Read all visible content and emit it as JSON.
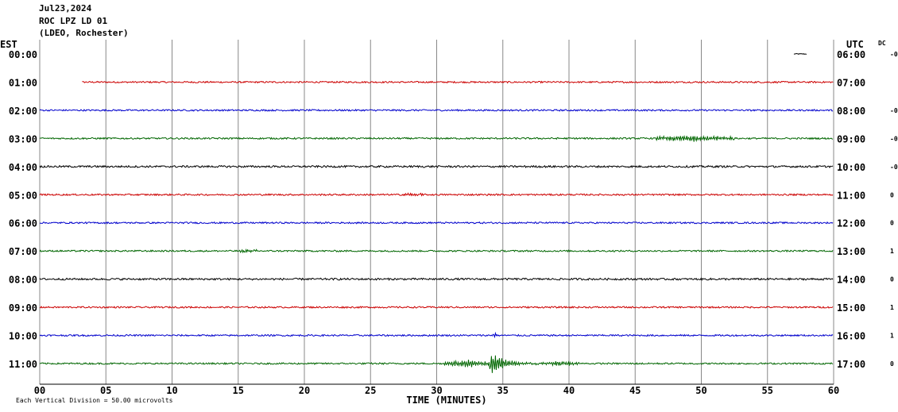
{
  "header": {
    "date": "Jul23,2024",
    "station": "ROC LPZ LD 01",
    "network": "(LDEO, Rochester)"
  },
  "axis_labels": {
    "left": "EST",
    "right": "UTC",
    "dc": "DC",
    "x_title": "TIME (MINUTES)",
    "footer": "Each Vertical Division =   50.00 microvolts"
  },
  "colors": {
    "red": "#cc0000",
    "blue": "#0000cc",
    "green": "#006600",
    "black": "#000000",
    "grid": "#888888"
  },
  "chart_data": {
    "type": "line",
    "title": "ROC LPZ LD 01",
    "xlabel": "TIME (MINUTES)",
    "xlim": [
      0,
      60
    ],
    "x_ticks": [
      "00",
      "05",
      "10",
      "15",
      "20",
      "25",
      "30",
      "35",
      "40",
      "45",
      "50",
      "55",
      "60"
    ],
    "grid": "vertical every 5 minutes",
    "rows": [
      {
        "est": "00:00",
        "utc": "06:00",
        "dc": "-0",
        "color": "black",
        "start_min": 57,
        "end_min": 58,
        "noise": 0.6,
        "events": []
      },
      {
        "est": "01:00",
        "utc": "07:00",
        "dc": "",
        "color": "red",
        "start_min": 3.2,
        "end_min": 60,
        "noise": 1.0,
        "events": []
      },
      {
        "est": "02:00",
        "utc": "08:00",
        "dc": "-0",
        "color": "blue",
        "start_min": 0,
        "end_min": 60,
        "noise": 1.0,
        "events": []
      },
      {
        "est": "03:00",
        "utc": "09:00",
        "dc": "-0",
        "color": "green",
        "start_min": 0,
        "end_min": 60,
        "noise": 1.0,
        "events": [
          {
            "start": 46.5,
            "end": 52.5,
            "amp": 4
          }
        ]
      },
      {
        "est": "04:00",
        "utc": "10:00",
        "dc": "-0",
        "color": "black",
        "start_min": 0,
        "end_min": 60,
        "noise": 1.2,
        "events": []
      },
      {
        "est": "05:00",
        "utc": "11:00",
        "dc": "0",
        "color": "red",
        "start_min": 0,
        "end_min": 60,
        "noise": 1.0,
        "events": [
          {
            "start": 27.5,
            "end": 29,
            "amp": 2
          }
        ]
      },
      {
        "est": "06:00",
        "utc": "12:00",
        "dc": "0",
        "color": "blue",
        "start_min": 0,
        "end_min": 60,
        "noise": 1.0,
        "events": []
      },
      {
        "est": "07:00",
        "utc": "13:00",
        "dc": "1",
        "color": "green",
        "start_min": 0,
        "end_min": 60,
        "noise": 1.0,
        "events": [
          {
            "start": 15,
            "end": 16.5,
            "amp": 2
          }
        ]
      },
      {
        "est": "08:00",
        "utc": "14:00",
        "dc": "0",
        "color": "black",
        "start_min": 0,
        "end_min": 60,
        "noise": 1.2,
        "events": []
      },
      {
        "est": "09:00",
        "utc": "15:00",
        "dc": "1",
        "color": "red",
        "start_min": 0,
        "end_min": 60,
        "noise": 1.0,
        "events": []
      },
      {
        "est": "10:00",
        "utc": "16:00",
        "dc": "1",
        "color": "blue",
        "start_min": 0,
        "end_min": 60,
        "noise": 1.0,
        "events": [
          {
            "start": 34.2,
            "end": 34.5,
            "amp": 5
          }
        ]
      },
      {
        "est": "11:00",
        "utc": "17:00",
        "dc": "0",
        "color": "green",
        "start_min": 0,
        "end_min": 60,
        "noise": 1.0,
        "events": [
          {
            "start": 30.5,
            "end": 34,
            "amp": 5
          },
          {
            "start": 34,
            "end": 38,
            "amp": 18
          },
          {
            "start": 38,
            "end": 41,
            "amp": 3
          }
        ]
      }
    ]
  }
}
